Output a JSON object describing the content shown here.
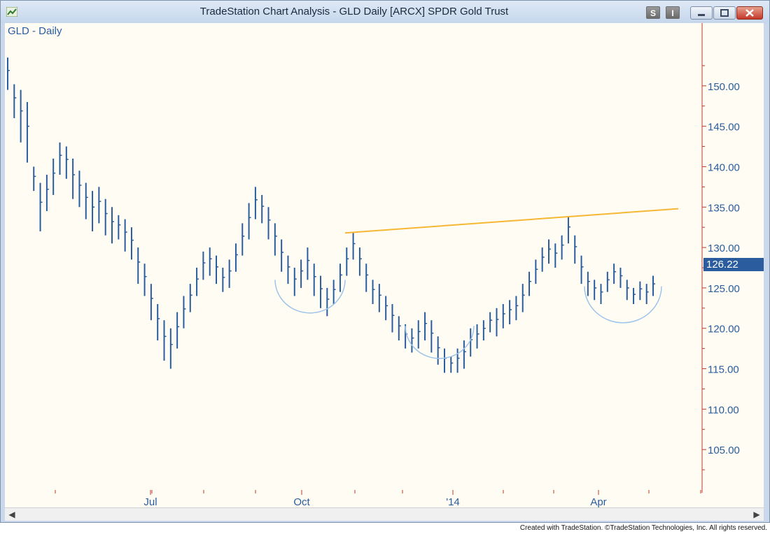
{
  "window": {
    "title": "TradeStation Chart Analysis - GLD Daily [ARCX] SPDR Gold Trust",
    "buttons": {
      "s": "S",
      "i": "I"
    }
  },
  "footer": {
    "credit": "Created with TradeStation. ©TradeStation Technologies, Inc. All rights reserved."
  },
  "colors": {
    "bars": "#2a5c9e",
    "trendline": "#f7b733",
    "arcs": "#9ec3ea",
    "axis": "#c0392b",
    "price_label": "#2a5c9e",
    "background": "#fffdf3"
  },
  "chart_data": {
    "type": "bar",
    "title": "GLD - Daily",
    "ylim": [
      100,
      155
    ],
    "y_ticks": [
      "150.00",
      "145.00",
      "140.00",
      "135.00",
      "130.00",
      "125.00",
      "120.00",
      "115.00",
      "110.00",
      "105.00"
    ],
    "x_ticks": [
      "Jul",
      "Oct",
      "'14",
      "Apr"
    ],
    "last_price": "126.22",
    "resistance_line": {
      "start": {
        "date": "2013-11",
        "price": 131.8
      },
      "end": {
        "date": "2014-05",
        "price": 134.8
      }
    },
    "bars": [
      [
        153.5,
        149.5
      ],
      [
        150.2,
        146.0
      ],
      [
        149.5,
        143.0
      ],
      [
        148.0,
        140.5
      ],
      [
        140.0,
        137.0
      ],
      [
        138.0,
        132.0
      ],
      [
        139.0,
        134.5
      ],
      [
        141.0,
        136.5
      ],
      [
        143.0,
        139.0
      ],
      [
        142.5,
        138.5
      ],
      [
        141.0,
        136.0
      ],
      [
        139.5,
        135.0
      ],
      [
        138.0,
        133.5
      ],
      [
        137.0,
        132.0
      ],
      [
        137.5,
        133.0
      ],
      [
        136.0,
        131.5
      ],
      [
        135.0,
        130.5
      ],
      [
        134.0,
        131.0
      ],
      [
        133.5,
        129.5
      ],
      [
        132.5,
        128.5
      ],
      [
        130.0,
        125.5
      ],
      [
        128.0,
        124.0
      ],
      [
        125.5,
        121.0
      ],
      [
        123.0,
        118.5
      ],
      [
        121.0,
        116.0
      ],
      [
        120.0,
        115.0
      ],
      [
        122.0,
        117.5
      ],
      [
        124.0,
        120.0
      ],
      [
        125.5,
        122.0
      ],
      [
        127.5,
        124.0
      ],
      [
        129.5,
        126.0
      ],
      [
        130.0,
        126.5
      ],
      [
        129.0,
        125.5
      ],
      [
        127.5,
        124.5
      ],
      [
        128.5,
        125.0
      ],
      [
        130.5,
        127.0
      ],
      [
        133.0,
        129.0
      ],
      [
        135.5,
        131.0
      ],
      [
        137.5,
        133.5
      ],
      [
        136.5,
        133.0
      ],
      [
        135.0,
        131.0
      ],
      [
        133.0,
        129.0
      ],
      [
        131.0,
        127.0
      ],
      [
        129.0,
        125.5
      ],
      [
        127.5,
        124.0
      ],
      [
        128.5,
        125.0
      ],
      [
        130.0,
        126.0
      ],
      [
        128.0,
        124.0
      ],
      [
        126.5,
        122.5
      ],
      [
        125.0,
        121.5
      ],
      [
        126.0,
        123.0
      ],
      [
        128.0,
        124.5
      ],
      [
        130.0,
        126.5
      ],
      [
        131.8,
        128.5
      ],
      [
        130.0,
        126.5
      ],
      [
        128.0,
        124.5
      ],
      [
        126.0,
        123.0
      ],
      [
        125.5,
        122.0
      ],
      [
        124.0,
        121.0
      ],
      [
        123.0,
        119.5
      ],
      [
        121.5,
        118.5
      ],
      [
        120.5,
        117.5
      ],
      [
        120.0,
        117.0
      ],
      [
        121.0,
        117.5
      ],
      [
        122.0,
        118.5
      ],
      [
        121.0,
        117.0
      ],
      [
        119.0,
        115.5
      ],
      [
        117.5,
        114.5
      ],
      [
        116.5,
        114.5
      ],
      [
        117.5,
        114.5
      ],
      [
        118.5,
        115.0
      ],
      [
        120.0,
        116.5
      ],
      [
        120.5,
        117.5
      ],
      [
        121.0,
        118.5
      ],
      [
        122.0,
        119.5
      ],
      [
        122.5,
        119.0
      ],
      [
        123.0,
        120.0
      ],
      [
        123.5,
        120.5
      ],
      [
        124.0,
        121.0
      ],
      [
        125.5,
        122.0
      ],
      [
        127.0,
        124.0
      ],
      [
        128.5,
        125.5
      ],
      [
        130.0,
        127.0
      ],
      [
        131.0,
        128.0
      ],
      [
        130.5,
        127.5
      ],
      [
        131.5,
        128.5
      ],
      [
        133.9,
        130.5
      ],
      [
        131.5,
        128.0
      ],
      [
        129.0,
        125.5
      ],
      [
        127.0,
        124.0
      ],
      [
        126.0,
        123.5
      ],
      [
        125.5,
        123.0
      ],
      [
        127.0,
        124.5
      ],
      [
        128.0,
        125.5
      ],
      [
        127.5,
        125.0
      ],
      [
        126.0,
        123.5
      ],
      [
        125.0,
        123.0
      ],
      [
        125.8,
        123.5
      ],
      [
        125.5,
        123.0
      ],
      [
        126.5,
        124.0
      ]
    ],
    "annotations": [
      {
        "type": "arc",
        "center_date": "2013-10",
        "center_price": 124.5
      },
      {
        "type": "arc",
        "center_date": "2013-12",
        "center_price": 116.5
      },
      {
        "type": "arc",
        "center_date": "2014-04",
        "center_price": 124.5
      }
    ]
  }
}
